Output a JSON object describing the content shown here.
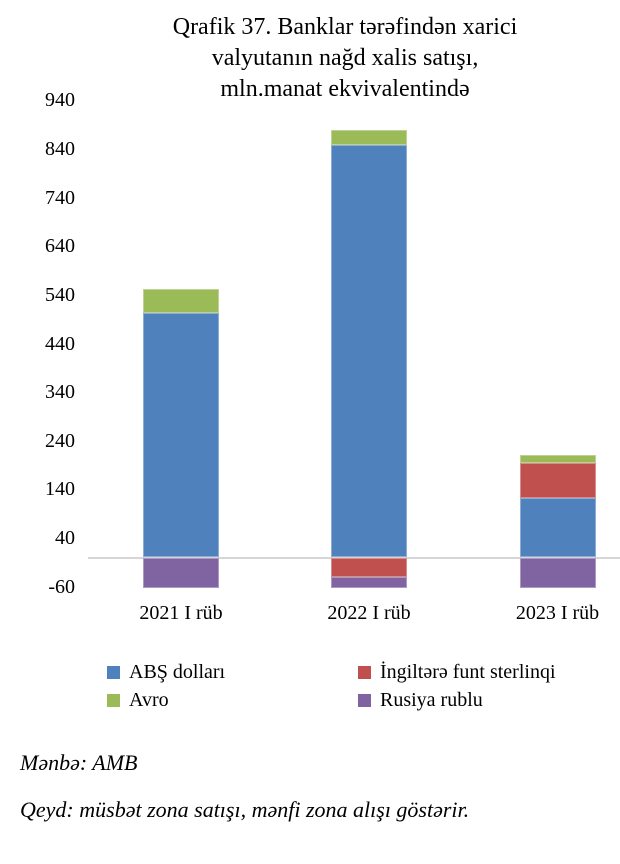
{
  "title": {
    "line1": "Qrafik 37. Banklar tərəfindən xarici",
    "line2": "valyutanın nağd xalis satışı,",
    "line3": "mln.manat ekvivalentində"
  },
  "chart_data": {
    "type": "bar",
    "stacked": true,
    "title": "Qrafik 37. Banklar tərəfindən xarici valyutanın nağd xalis satışı, mln.manat ekvivalentində",
    "categories": [
      "2021 I rüb",
      "2022 I rüb",
      "2023 I rüb"
    ],
    "series": [
      {
        "name": "ABŞ dolları",
        "color": "#4F81BD",
        "values": [
          502,
          849,
          122
        ]
      },
      {
        "name": "İngiltərə funt sterlinqi",
        "color": "#C0504D",
        "values": [
          0,
          -41,
          73
        ]
      },
      {
        "name": "Avro",
        "color": "#9BBB59",
        "values": [
          50,
          31,
          15
        ]
      },
      {
        "name": "Rusiya rublu",
        "color": "#8064A2",
        "values": [
          -62,
          -21,
          -62
        ]
      }
    ],
    "yticks": [
      940,
      840,
      740,
      640,
      540,
      440,
      340,
      240,
      140,
      40,
      -60
    ],
    "ylim": [
      -70,
      940
    ],
    "xlabel": "",
    "ylabel": "",
    "grid": "zero-line-only",
    "zero_line_color": "#D6D6D6",
    "legend_position": "bottom"
  },
  "notes": {
    "source": "Mənbə: AMB",
    "remark": "Qeyd: müsbət zona satışı, mənfi zona alışı göstərir."
  }
}
